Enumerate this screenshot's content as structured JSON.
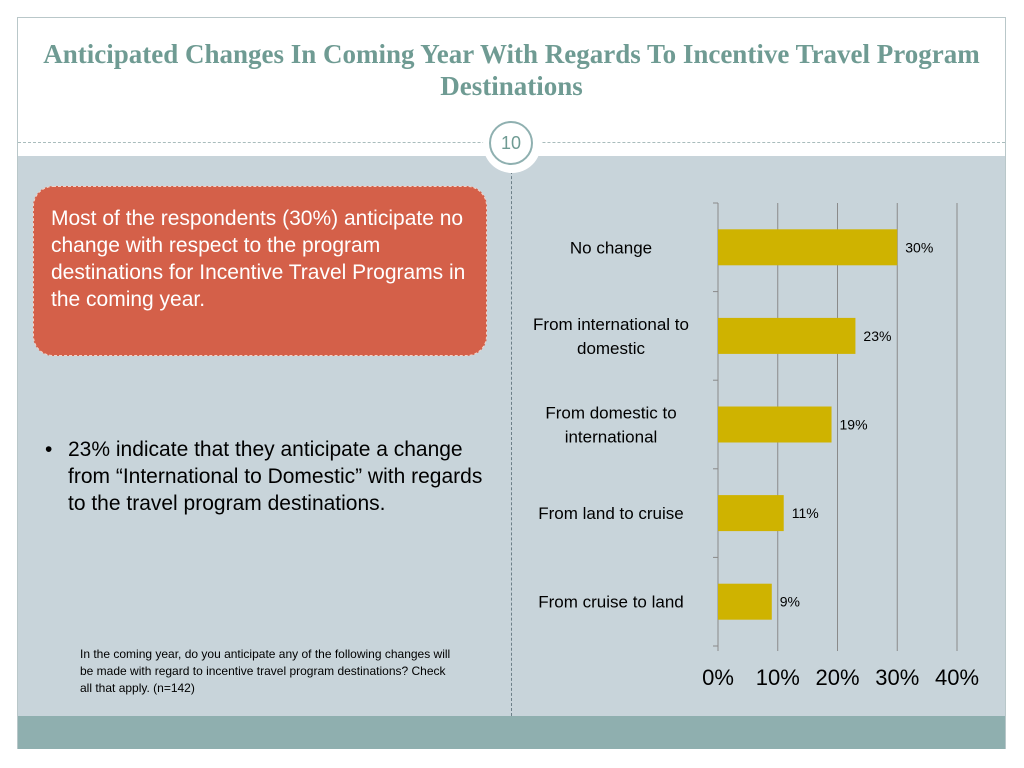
{
  "slide": {
    "title": "Anticipated Changes In Coming Year With Regards To Incentive Travel Program Destinations",
    "page_number": "10",
    "callout": "Most of the respondents (30%) anticipate no change with respect to the program destinations for Incentive Travel Programs in the coming year.",
    "bullet_marker": "•",
    "bullet": "23% indicate that they anticipate a change from “International to Domestic” with regards to the travel program destinations.",
    "note": "In the coming year, do you anticipate any of the following changes will be made with regard to incentive travel program destinations?  Check all that apply. (n=142)"
  },
  "colors": {
    "title": "#6f9b93",
    "callout": "#d46049",
    "content_bg": "#c8d4da",
    "footer": "#8fafaf",
    "bar": "#cfb300",
    "grid": "#8a8a8a"
  },
  "chart_data": {
    "type": "bar",
    "orientation": "horizontal",
    "categories": [
      "No change",
      "From international to domestic",
      "From domestic to international",
      "From land to cruise",
      "From cruise to land"
    ],
    "category_lines": [
      [
        "No change"
      ],
      [
        "From international to",
        "domestic"
      ],
      [
        "From domestic to",
        "international"
      ],
      [
        "From land to cruise"
      ],
      [
        "From cruise to land"
      ]
    ],
    "values": [
      30,
      23,
      19,
      11,
      9
    ],
    "value_labels": [
      "30%",
      "23%",
      "19%",
      "11%",
      "9%"
    ],
    "xlim": [
      0,
      40
    ],
    "x_ticks": [
      0,
      10,
      20,
      30,
      40
    ],
    "x_tick_labels": [
      "0%",
      "10%",
      "20%",
      "30%",
      "40%"
    ],
    "grid": true,
    "legend": "none"
  }
}
